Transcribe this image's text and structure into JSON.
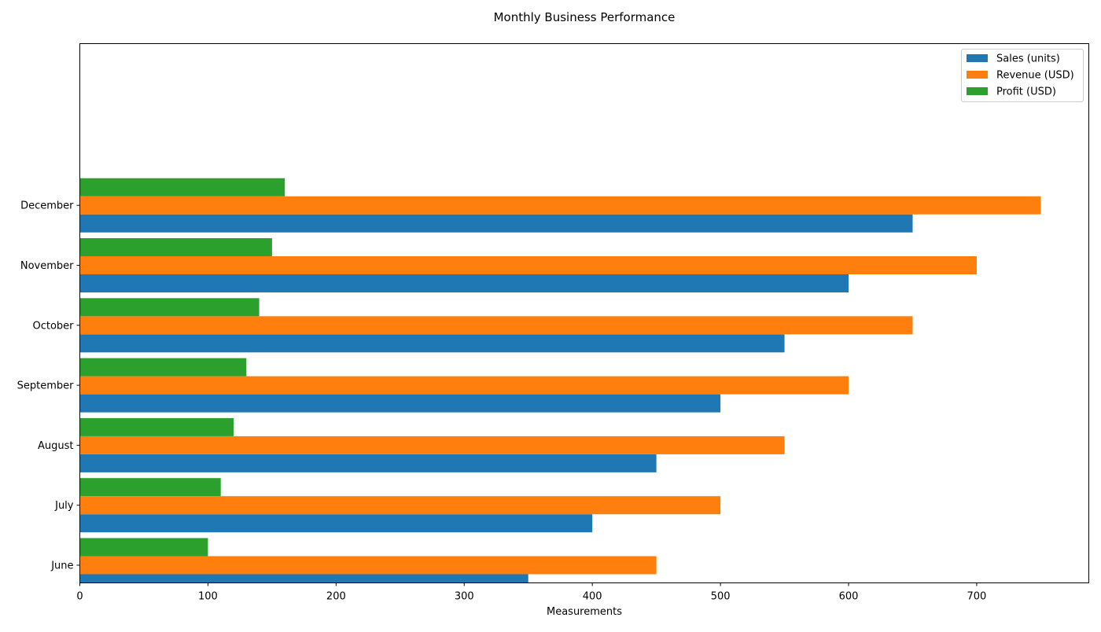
{
  "chart_data": {
    "type": "bar",
    "orientation": "horizontal",
    "title": "Monthly Business Performance",
    "xlabel": "Measurements",
    "ylabel": "",
    "categories": [
      "June",
      "July",
      "August",
      "September",
      "October",
      "November",
      "December"
    ],
    "series": [
      {
        "name": "Sales (units)",
        "color": "#1f77b4",
        "values": [
          350,
          400,
          450,
          500,
          550,
          600,
          650
        ]
      },
      {
        "name": "Revenue (USD)",
        "color": "#ff7f0e",
        "values": [
          450,
          500,
          550,
          600,
          650,
          700,
          750
        ]
      },
      {
        "name": "Profit (USD)",
        "color": "#2ca02c",
        "values": [
          100,
          110,
          120,
          130,
          140,
          150,
          160
        ]
      }
    ],
    "xlim": [
      0,
      787.5
    ],
    "xticks": [
      0,
      100,
      200,
      300,
      400,
      500,
      600,
      700
    ],
    "grid": false,
    "legend_position": "top-right"
  }
}
